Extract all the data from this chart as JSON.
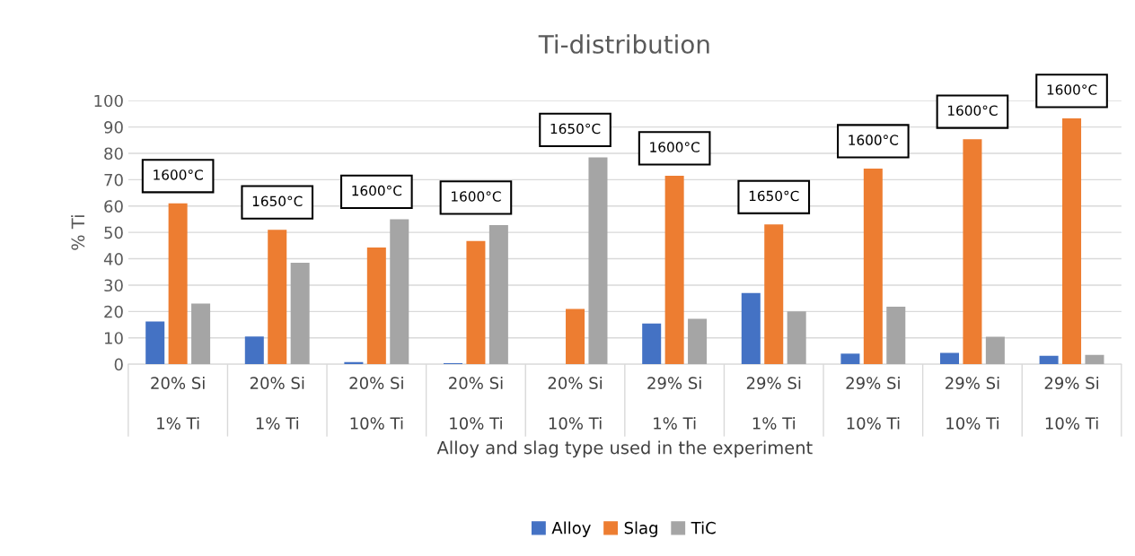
{
  "chart_data": {
    "type": "bar",
    "title": "Ti-distribution",
    "xlabel": "Alloy and slag type used in the experiment",
    "ylabel": "% Ti",
    "categories": [
      "20% Si\n1% Ti",
      "20% Si\n1% Ti",
      "20% Si\n10% Ti",
      "20% Si\n10% Ti",
      "20% Si\n10% Ti",
      "29% Si\n1% Ti",
      "29% Si\n1% Ti",
      "29% Si\n10% Ti",
      "29% Si\n10% Ti",
      "29% Si\n10% Ti"
    ],
    "series": [
      {
        "name": "Alloy",
        "color": "#4472c4",
        "values": [
          16.2,
          10.5,
          0.8,
          0.4,
          null,
          15.4,
          27,
          4,
          4.3,
          3.2
        ]
      },
      {
        "name": "Slag",
        "color": "#ed7d31",
        "values": [
          61,
          51,
          44.3,
          46.7,
          21,
          71.5,
          53,
          74.2,
          85.4,
          93.3
        ]
      },
      {
        "name": "TiC",
        "color": "#a5a5a5",
        "values": [
          23,
          38.5,
          55,
          52.8,
          78.5,
          17.2,
          20,
          21.8,
          10.4,
          3.5
        ]
      }
    ],
    "annotations": [
      "1600°C",
      "1650°C",
      "1600°C",
      "1600°C",
      "1650°C",
      "1600°C",
      "1650°C",
      "1600°C",
      "1600°C",
      "1600°C"
    ],
    "ylim": [
      0,
      100
    ],
    "yticks": [
      0,
      10,
      20,
      30,
      40,
      50,
      60,
      70,
      80,
      90,
      100
    ],
    "grid": "y",
    "legend": "bottom"
  }
}
